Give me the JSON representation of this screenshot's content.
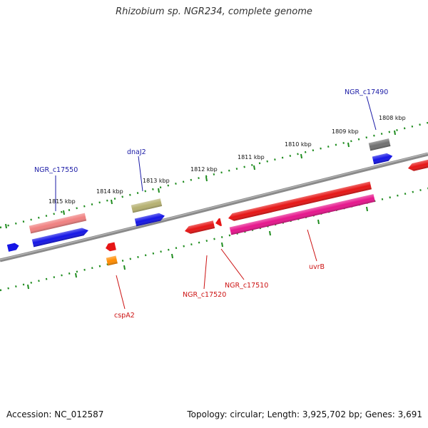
{
  "title": "Rhizobium sp. NGR234, complete genome",
  "footer": {
    "accession": "Accession: NC_012587",
    "summary": "Topology: circular; Length: 3,925,702 bp; Genes: 3,691"
  },
  "colors": {
    "backbone": "#8a8a8a",
    "ticks": "#1e8c1e",
    "forward_label": "#1a1aa6",
    "reverse_label": "#cc1111"
  },
  "scale_ticks": [
    "1808 kbp",
    "1809 kbp",
    "1810 kbp",
    "1811 kbp",
    "1812 kbp",
    "1813 kbp",
    "1814 kbp",
    "1815 kbp"
  ],
  "forward_features": [
    {
      "id": "left-edge",
      "color": "#1515e6"
    },
    {
      "id": "NGR_c17550",
      "color": "#f08080"
    },
    {
      "id": "NGR_c17550-cds",
      "color": "#1515e6"
    },
    {
      "id": "dnaJ2",
      "color": "#b5b070"
    },
    {
      "id": "dnaJ2-cds",
      "color": "#1515e6"
    },
    {
      "id": "NGR_c17490",
      "color": "#707070"
    },
    {
      "id": "NGR_c17490-cds",
      "color": "#1515e6"
    }
  ],
  "reverse_features": [
    {
      "id": "cspA2",
      "color": "#e61515"
    },
    {
      "id": "cspA2-cds",
      "color": "#ff8c00"
    },
    {
      "id": "NGR_c17520",
      "color": "#e61515"
    },
    {
      "id": "NGR_c17510",
      "color": "#e61515"
    },
    {
      "id": "uvrB",
      "color": "#e61515"
    },
    {
      "id": "uvrB-cds",
      "color": "#e6158c"
    },
    {
      "id": "right-edge",
      "color": "#e61515"
    }
  ],
  "gene_labels": {
    "c17550": "NGR_c17550",
    "dnaJ2": "dnaJ2",
    "c17490": "NGR_c17490",
    "cspA2": "cspA2",
    "c17520": "NGR_c17520",
    "c17510": "NGR_c17510",
    "uvrB": "uvrB"
  }
}
